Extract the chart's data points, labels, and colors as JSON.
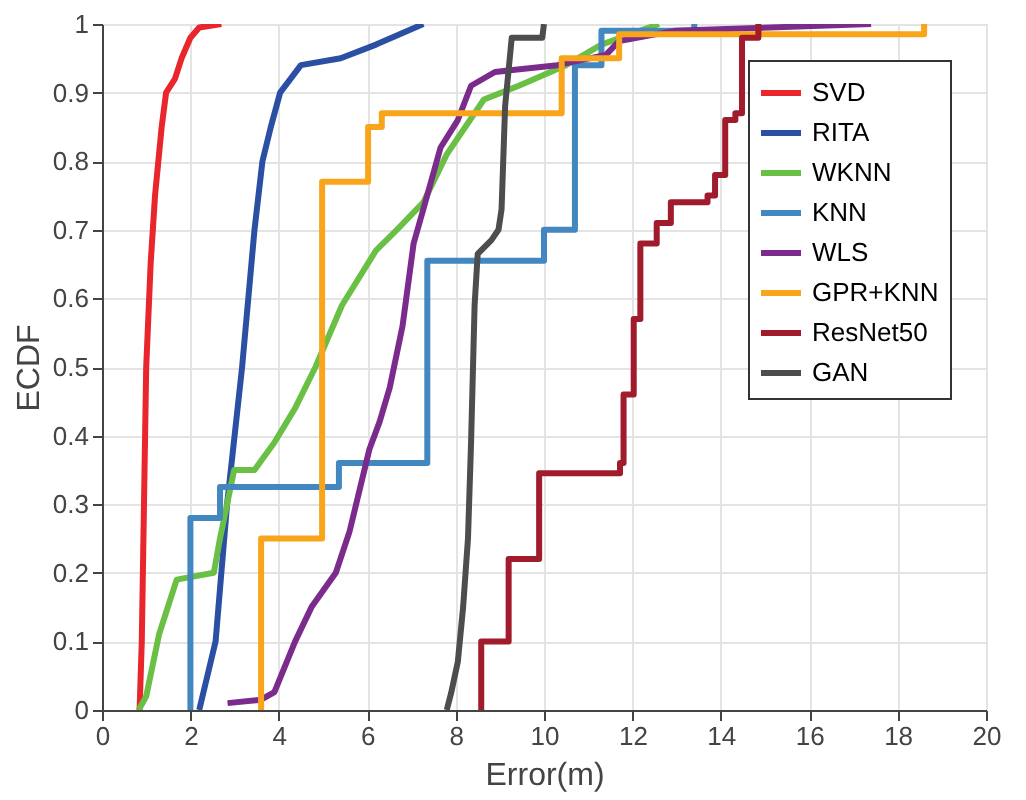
{
  "chart_data": {
    "type": "line",
    "xlabel": "Error(m)",
    "ylabel": "ECDF",
    "xlim": [
      0,
      20
    ],
    "xticks": [
      0,
      2,
      4,
      6,
      8,
      10,
      12,
      14,
      16,
      18,
      20
    ],
    "ylim": [
      0,
      1
    ],
    "yticks": [
      0,
      0.1,
      0.2,
      0.3,
      0.4,
      0.5,
      0.6,
      0.7,
      0.8,
      0.9,
      1
    ],
    "grid": true,
    "legend": "top right",
    "line_style": "solid",
    "marker": "none",
    "series": [
      {
        "name": "SVD",
        "color": "#e8262b",
        "x": [
          0.85,
          0.9,
          0.95,
          1.0,
          1.1,
          1.2,
          1.35,
          1.45,
          1.65,
          1.8,
          2.0,
          2.2,
          2.7
        ],
        "values": [
          0,
          0.1,
          0.3,
          0.5,
          0.65,
          0.75,
          0.85,
          0.9,
          0.92,
          0.95,
          0.98,
          0.995,
          1.0
        ]
      },
      {
        "name": "RITA",
        "color": "#2b4fa3",
        "x": [
          2.2,
          2.57,
          2.83,
          3.17,
          3.45,
          3.63,
          3.82,
          4.03,
          4.5,
          5.4,
          6.2,
          7.27
        ],
        "values": [
          0,
          0.1,
          0.3,
          0.5,
          0.7,
          0.8,
          0.85,
          0.9,
          0.94,
          0.95,
          0.97,
          1.0
        ]
      },
      {
        "name": "WKNN",
        "color": "#6abf45",
        "x": [
          0.83,
          1.0,
          1.29,
          1.69,
          2.53,
          2.67,
          2.99,
          3.45,
          3.9,
          4.37,
          4.83,
          5.43,
          6.2,
          6.67,
          7.27,
          7.8,
          8.64,
          9.43,
          10.5,
          11.3,
          12.6
        ],
        "values": [
          0,
          0.02,
          0.11,
          0.19,
          0.2,
          0.25,
          0.35,
          0.35,
          0.39,
          0.44,
          0.5,
          0.59,
          0.67,
          0.7,
          0.74,
          0.81,
          0.89,
          0.91,
          0.94,
          0.97,
          1.0
        ]
      },
      {
        "name": "KNN",
        "color": "#4287c0",
        "type": "step",
        "x": [
          2.0,
          2.0,
          2.67,
          5.36,
          7.36,
          10.0,
          10.7,
          11.3,
          13.4
        ],
        "values": [
          0,
          0.28,
          0.325,
          0.36,
          0.655,
          0.7,
          0.94,
          0.99,
          1.0
        ]
      },
      {
        "name": "WLS",
        "color": "#7b2b8b",
        "x": [
          2.84,
          3.6,
          3.9,
          4.37,
          4.74,
          5.29,
          5.6,
          6.05,
          6.28,
          6.51,
          6.8,
          7.05,
          7.27,
          7.66,
          8.05,
          8.35,
          8.89,
          10.3,
          11.4,
          11.7,
          12.95,
          17.4
        ],
        "values": [
          0.01,
          0.015,
          0.026,
          0.1,
          0.15,
          0.2,
          0.26,
          0.38,
          0.42,
          0.47,
          0.56,
          0.68,
          0.73,
          0.82,
          0.86,
          0.91,
          0.93,
          0.94,
          0.955,
          0.975,
          0.99,
          1.0
        ]
      },
      {
        "name": "GPR+KNN",
        "color": "#f8a51c",
        "type": "step",
        "x": [
          3.6,
          3.6,
          4.98,
          6.02,
          6.33,
          10.4,
          11.7,
          18.6
        ],
        "values": [
          0,
          0.25,
          0.77,
          0.85,
          0.87,
          0.95,
          0.985,
          1.0
        ]
      },
      {
        "name": "ResNet50",
        "color": "#a01c2c",
        "type": "step",
        "x": [
          8.58,
          8.58,
          9.2,
          9.89,
          11.72,
          11.8,
          12.03,
          12.18,
          12.55,
          12.87,
          13.7,
          13.87,
          14.1,
          14.33,
          14.48,
          14.85
        ],
        "values": [
          0,
          0.1,
          0.22,
          0.345,
          0.36,
          0.46,
          0.57,
          0.68,
          0.71,
          0.74,
          0.75,
          0.78,
          0.86,
          0.87,
          0.98,
          1.0
        ]
      },
      {
        "name": "GAN",
        "color": "#4d4d4d",
        "x": [
          7.8,
          7.9,
          8.05,
          8.17,
          8.28,
          8.35,
          8.43,
          8.5,
          8.81,
          8.97,
          9.04,
          9.12,
          9.27,
          9.96,
          10.0
        ],
        "values": [
          0,
          0.025,
          0.07,
          0.15,
          0.25,
          0.39,
          0.59,
          0.665,
          0.685,
          0.7,
          0.73,
          0.88,
          0.98,
          0.98,
          1.0
        ]
      }
    ]
  }
}
